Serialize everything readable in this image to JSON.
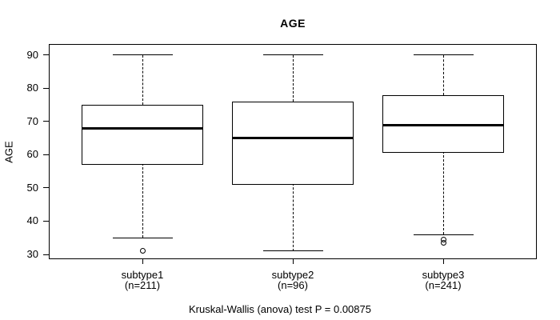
{
  "figure": {
    "background": "#ffffff",
    "stroke_color": "#000000",
    "box_fill": "#ffffff"
  },
  "chart_data": {
    "type": "boxplot",
    "title": "AGE",
    "ylabel": "AGE",
    "xlabel": "",
    "caption": "Kruskal-Wallis (anova) test P = 0.00875",
    "yticks": [
      30,
      40,
      50,
      60,
      70,
      80,
      90
    ],
    "ylim": [
      28.8,
      93.1
    ],
    "grid": false,
    "legend": null,
    "groups": [
      {
        "label": "subtype1",
        "n_label": "(n=211)",
        "n": 211,
        "whisker_low": 35,
        "q1": 57.5,
        "median": 68,
        "q3": 75,
        "whisker_high": 90,
        "outliers": [
          31
        ]
      },
      {
        "label": "subtype2",
        "n_label": "(n=96)",
        "n": 96,
        "whisker_low": 31,
        "q1": 51.5,
        "median": 65,
        "q3": 76,
        "whisker_high": 90,
        "outliers": []
      },
      {
        "label": "subtype3",
        "n_label": "(n=241)",
        "n": 241,
        "whisker_low": 36,
        "q1": 61,
        "median": 69,
        "q3": 78,
        "whisker_high": 90,
        "outliers": [
          34.5,
          33.5
        ]
      }
    ]
  }
}
